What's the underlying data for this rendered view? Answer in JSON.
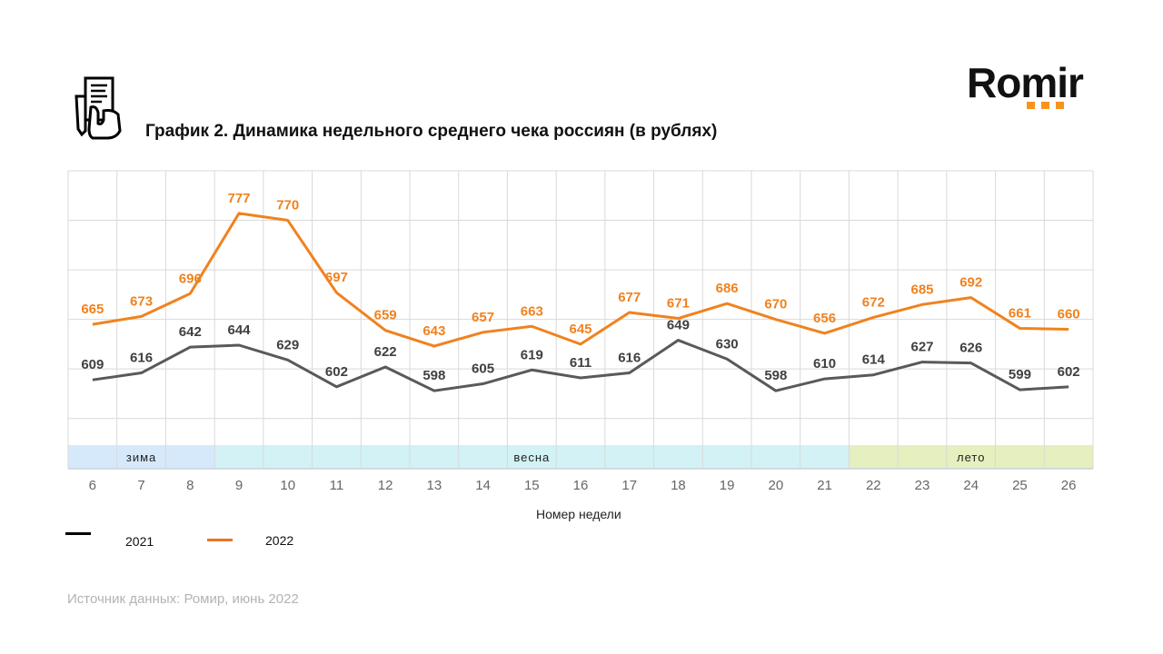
{
  "title": "График 2. Динамика недельного среднего чека россиян (в рублях)",
  "logo": {
    "text": "Romir",
    "dots_color": "#f7941d"
  },
  "icons": {
    "header_icon": "receipt-in-hand-icon"
  },
  "source": "Источник данных: Ромир, июнь 2022",
  "chart_data": {
    "type": "line",
    "title": "График 2. Динамика недельного среднего чека россиян (в рублях)",
    "xlabel": "Номер недели",
    "ylabel": "",
    "x": [
      "6",
      "7",
      "8",
      "9",
      "10",
      "11",
      "12",
      "13",
      "14",
      "15",
      "16",
      "17",
      "18",
      "19",
      "20",
      "21",
      "22",
      "23",
      "24",
      "25",
      "26"
    ],
    "ylim": [
      545,
      820
    ],
    "y_gridlines": [
      570,
      620,
      670,
      720,
      770,
      820
    ],
    "grid": true,
    "y_tick_labels_shown": false,
    "legend_position": "bottom-left",
    "series": [
      {
        "name": "2021",
        "color": "#595959",
        "legend_color": "#000000",
        "values": [
          609,
          616,
          642,
          644,
          629,
          602,
          622,
          598,
          605,
          619,
          611,
          616,
          649,
          630,
          598,
          610,
          614,
          627,
          626,
          599,
          602
        ]
      },
      {
        "name": "2022",
        "color": "#f0821e",
        "legend_color": "#e8732a",
        "values": [
          665,
          673,
          696,
          777,
          770,
          697,
          659,
          643,
          657,
          663,
          645,
          677,
          671,
          686,
          670,
          656,
          672,
          685,
          692,
          661,
          660
        ]
      }
    ],
    "season_bands": [
      {
        "label": "зима",
        "from": "6",
        "to": "8",
        "color": "#d6e9fb",
        "label_at": "7"
      },
      {
        "label": "весна",
        "from": "9",
        "to": "21",
        "color": "#d2f2f5",
        "label_at": "15"
      },
      {
        "label": "лето",
        "from": "22",
        "to": "26",
        "color": "#e6efbe",
        "label_at": "24"
      }
    ]
  }
}
